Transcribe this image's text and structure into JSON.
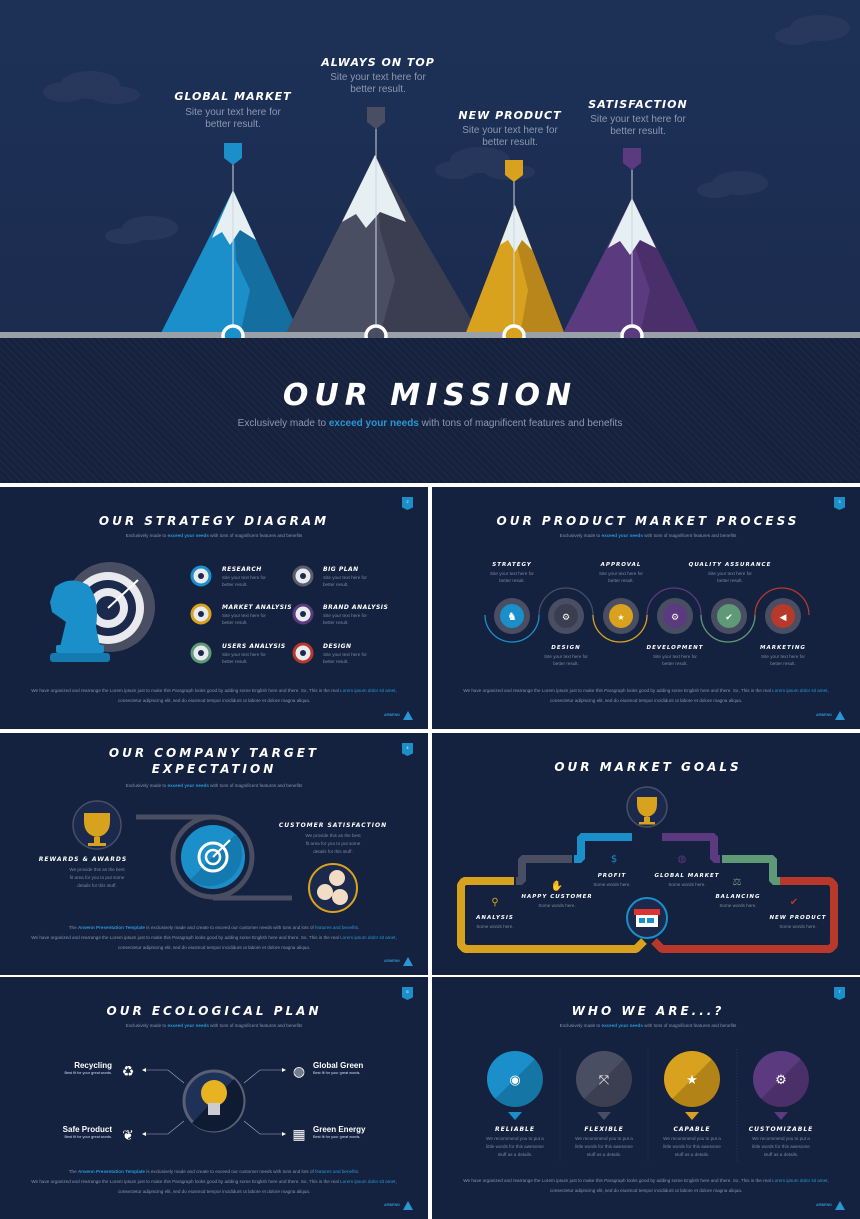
{
  "hero": {
    "peaks": [
      {
        "title": "Global Market",
        "text1": "Site your text here for",
        "text2": "better result.",
        "color": "#1a8fc9"
      },
      {
        "title": "Always on Top",
        "text1": "Site your text here for",
        "text2": "better result.",
        "color": "#4a4e63"
      },
      {
        "title": "New Product",
        "text1": "Site your text here for",
        "text2": "better result.",
        "color": "#d9a21e"
      },
      {
        "title": "Satisfaction",
        "text1": "Site your text here for",
        "text2": "better result.",
        "color": "#5b3a80"
      }
    ],
    "title": "Our Mission",
    "subtitle_pre": "Exclusively made to ",
    "subtitle_highlight": "exceed your needs",
    "subtitle_post": " with tons of magnificent features and benefits"
  },
  "common": {
    "subtitle_pre": "Exclusively made to ",
    "subtitle_highlight": "exceed your needs",
    "subtitle_post": " with tons of magnificent features and benefits",
    "para_pre": "We have organized and rearrange the Lorem ipsum just to make this Paragraph looks good by adding some English here and there. So, This is the real ",
    "para_link": "Lorem ipsum dolor sit amet",
    "para_post": ", consectetur adipiscing elit, sed do eiusmod tempor incididunt ut labore et dolore magna aliqua.",
    "intro_pre": "The ",
    "intro_brand": "Arwenn Presentation Template",
    "intro_mid": " is exclusively made and create to exceed our customer needs with tons and lots of ",
    "intro_link": "features and benefits",
    "intro_post": ".",
    "logo": "ARWENN"
  },
  "strategy": {
    "title": "Our Strategy Diagram",
    "page": "2",
    "items": [
      {
        "label": "Research",
        "text1": "Site your text here for",
        "text2": "better result.",
        "color": "#1a8fc9"
      },
      {
        "label": "Big Plan",
        "text1": "Site your text here for",
        "text2": "better result.",
        "color": "#5a5d6e"
      },
      {
        "label": "Market Analysis",
        "text1": "Site your text here for",
        "text2": "better result.",
        "color": "#d9a21e"
      },
      {
        "label": "Brand Analysis",
        "text1": "Site your text here for",
        "text2": "better result.",
        "color": "#5b3a80"
      },
      {
        "label": "Users Analysis",
        "text1": "Site your text here for",
        "text2": "better result.",
        "color": "#5e9a78"
      },
      {
        "label": "Design",
        "text1": "Site your text here for",
        "text2": "better result.",
        "color": "#b8392b"
      }
    ]
  },
  "process": {
    "title": "Our Product Market Process",
    "page": "3",
    "steps": [
      {
        "label": "Strategy",
        "text1": "Site your text here for",
        "text2": "better result.",
        "color": "#1a8fc9"
      },
      {
        "label": "Design",
        "text1": "Site your text here for",
        "text2": "better result.",
        "color": "#4a4e63"
      },
      {
        "label": "Approval",
        "text1": "Site your text here for",
        "text2": "better result.",
        "color": "#d9a21e"
      },
      {
        "label": "Development",
        "text1": "Site your text here for",
        "text2": "better result.",
        "color": "#5b3a80"
      },
      {
        "label": "Quality Assurance",
        "text1": "Site your text here for",
        "text2": "better result.",
        "color": "#5e9a78"
      },
      {
        "label": "Marketing",
        "text1": "Site your text here for",
        "text2": "better result.",
        "color": "#b8392b"
      }
    ]
  },
  "target": {
    "title1": "Our Company Target",
    "title2": "Expectation",
    "page": "4",
    "left": {
      "label": "Rewards & Awards",
      "text1": "We provide this as the best",
      "text2": "fit area for you to put some",
      "text3": "details for this stuff."
    },
    "right": {
      "label": "Customer Satisfaction",
      "text1": "We provide this as the best",
      "text2": "fit area for you to put some",
      "text3": "details for this stuff."
    }
  },
  "goals": {
    "title": "Our Market Goals",
    "items": [
      {
        "label": "Analysis",
        "text": "Some words here.",
        "color": "#d9a21e"
      },
      {
        "label": "Happy Customer",
        "text": "Some words here.",
        "color": "#4a4e63"
      },
      {
        "label": "Profit",
        "text": "Some words here.",
        "color": "#1a8fc9"
      },
      {
        "label": "Global Market",
        "text": "Some words here.",
        "color": "#5b3a80"
      },
      {
        "label": "Balancing",
        "text": "Some words here.",
        "color": "#5e9a78"
      },
      {
        "label": "New Product",
        "text": "Some words here.",
        "color": "#b8392b"
      }
    ]
  },
  "eco": {
    "title": "Our Ecological Plan",
    "page": "6",
    "items": [
      {
        "label": "Recycling",
        "text": "Best fit for your great words."
      },
      {
        "label": "Global Green",
        "text": "Best fit for your great words."
      },
      {
        "label": "Safe Product",
        "text": "Best fit for your great words."
      },
      {
        "label": "Green Energy",
        "text": "Best fit for your great words."
      }
    ]
  },
  "who": {
    "title": "Who We Are...?",
    "page": "7",
    "items": [
      {
        "label": "Reliable",
        "text1": "We recommend you to put a",
        "text2": "little words for this awesome",
        "text3": "stuff as a details.",
        "color": "#1a8fc9"
      },
      {
        "label": "Flexible",
        "text1": "We recommend you to put a",
        "text2": "little words for this awesome",
        "text3": "stuff as a details.",
        "color": "#4a4e63"
      },
      {
        "label": "Capable",
        "text1": "We recommend you to put a",
        "text2": "little words for this awesome",
        "text3": "stuff as a details.",
        "color": "#d9a21e"
      },
      {
        "label": "Customizable",
        "text1": "We recommend you to put a",
        "text2": "little words for this awesome",
        "text3": "stuff as a details.",
        "color": "#5b3a80"
      }
    ]
  }
}
